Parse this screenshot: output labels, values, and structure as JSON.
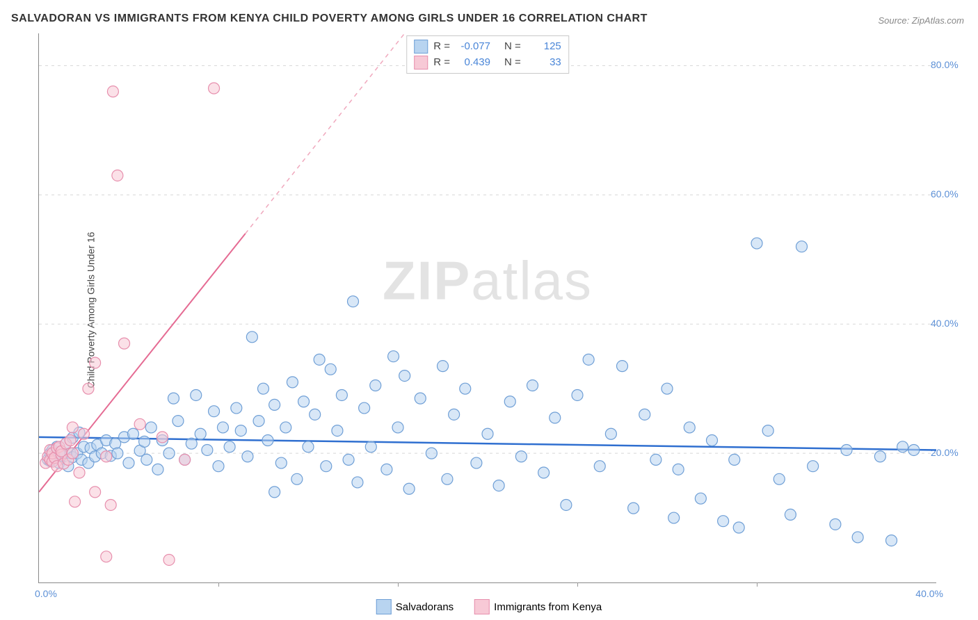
{
  "title": "SALVADORAN VS IMMIGRANTS FROM KENYA CHILD POVERTY AMONG GIRLS UNDER 16 CORRELATION CHART",
  "source_prefix": "Source: ",
  "source_name": "ZipAtlas.com",
  "y_axis_label": "Child Poverty Among Girls Under 16",
  "watermark_bold": "ZIP",
  "watermark_light": "atlas",
  "chart": {
    "type": "scatter",
    "xlim": [
      0,
      40
    ],
    "ylim": [
      0,
      85
    ],
    "x_ticks": [
      {
        "v": 0,
        "l": "0.0%"
      },
      {
        "v": 40,
        "l": "40.0%"
      }
    ],
    "x_minor_ticks": [
      8,
      16,
      24,
      32
    ],
    "y_ticks": [
      {
        "v": 20,
        "l": "20.0%"
      },
      {
        "v": 40,
        "l": "40.0%"
      },
      {
        "v": 60,
        "l": "60.0%"
      },
      {
        "v": 80,
        "l": "80.0%"
      }
    ],
    "grid_color": "#d8d8d8",
    "background": "#ffffff",
    "marker_radius": 8,
    "marker_stroke_width": 1.2,
    "series": [
      {
        "id": "salvadorans",
        "label": "Salvadorans",
        "fill": "#b8d4f0",
        "stroke": "#6f9fd6",
        "fill_opacity": 0.55,
        "trend": {
          "x1": 0,
          "y1": 22.5,
          "x2": 40,
          "y2": 20.5,
          "color": "#2f6fd0",
          "width": 2.5,
          "dash": ""
        },
        "R": "-0.077",
        "N": "125",
        "points": [
          [
            0.4,
            19.0
          ],
          [
            0.5,
            20.0
          ],
          [
            0.5,
            18.8
          ],
          [
            0.6,
            20.5
          ],
          [
            0.7,
            19.2
          ],
          [
            0.8,
            21.0
          ],
          [
            0.9,
            18.5
          ],
          [
            1.0,
            20.3
          ],
          [
            1.0,
            19.6
          ],
          [
            1.2,
            21.5
          ],
          [
            1.3,
            18.0
          ],
          [
            1.4,
            20.0
          ],
          [
            1.5,
            22.4
          ],
          [
            1.5,
            19.4
          ],
          [
            1.7,
            20.0
          ],
          [
            1.8,
            23.2
          ],
          [
            1.9,
            19.0
          ],
          [
            2.0,
            21.0
          ],
          [
            2.2,
            18.5
          ],
          [
            2.3,
            20.8
          ],
          [
            2.5,
            19.5
          ],
          [
            2.6,
            21.3
          ],
          [
            2.8,
            20.0
          ],
          [
            3.0,
            22.0
          ],
          [
            3.2,
            19.6
          ],
          [
            3.4,
            21.5
          ],
          [
            3.5,
            20.0
          ],
          [
            3.8,
            22.5
          ],
          [
            4.0,
            18.5
          ],
          [
            4.2,
            23.0
          ],
          [
            4.5,
            20.4
          ],
          [
            4.7,
            21.8
          ],
          [
            4.8,
            19.0
          ],
          [
            5.0,
            24.0
          ],
          [
            5.3,
            17.5
          ],
          [
            5.5,
            22.0
          ],
          [
            5.8,
            20.0
          ],
          [
            6.0,
            28.5
          ],
          [
            6.2,
            25.0
          ],
          [
            6.5,
            19.0
          ],
          [
            6.8,
            21.5
          ],
          [
            7.0,
            29.0
          ],
          [
            7.2,
            23.0
          ],
          [
            7.5,
            20.5
          ],
          [
            7.8,
            26.5
          ],
          [
            8.0,
            18.0
          ],
          [
            8.2,
            24.0
          ],
          [
            8.5,
            21.0
          ],
          [
            8.8,
            27.0
          ],
          [
            9.0,
            23.5
          ],
          [
            9.3,
            19.5
          ],
          [
            9.5,
            38.0
          ],
          [
            9.8,
            25.0
          ],
          [
            10.0,
            30.0
          ],
          [
            10.2,
            22.0
          ],
          [
            10.5,
            27.5
          ],
          [
            10.5,
            14.0
          ],
          [
            10.8,
            18.5
          ],
          [
            11.0,
            24.0
          ],
          [
            11.3,
            31.0
          ],
          [
            11.5,
            16.0
          ],
          [
            11.8,
            28.0
          ],
          [
            12.0,
            21.0
          ],
          [
            12.3,
            26.0
          ],
          [
            12.5,
            34.5
          ],
          [
            12.8,
            18.0
          ],
          [
            13.0,
            33.0
          ],
          [
            13.3,
            23.5
          ],
          [
            13.5,
            29.0
          ],
          [
            13.8,
            19.0
          ],
          [
            14.0,
            43.5
          ],
          [
            14.2,
            15.5
          ],
          [
            14.5,
            27.0
          ],
          [
            14.8,
            21.0
          ],
          [
            15.0,
            30.5
          ],
          [
            15.5,
            17.5
          ],
          [
            15.8,
            35.0
          ],
          [
            16.0,
            24.0
          ],
          [
            16.3,
            32.0
          ],
          [
            16.5,
            14.5
          ],
          [
            17.0,
            28.5
          ],
          [
            17.5,
            20.0
          ],
          [
            18.0,
            33.5
          ],
          [
            18.2,
            16.0
          ],
          [
            18.5,
            26.0
          ],
          [
            19.0,
            30.0
          ],
          [
            19.5,
            18.5
          ],
          [
            20.0,
            23.0
          ],
          [
            20.5,
            15.0
          ],
          [
            21.0,
            28.0
          ],
          [
            21.5,
            19.5
          ],
          [
            22.0,
            30.5
          ],
          [
            22.5,
            17.0
          ],
          [
            23.0,
            25.5
          ],
          [
            23.5,
            12.0
          ],
          [
            24.0,
            29.0
          ],
          [
            24.5,
            34.5
          ],
          [
            25.0,
            18.0
          ],
          [
            25.5,
            23.0
          ],
          [
            26.0,
            33.5
          ],
          [
            26.5,
            11.5
          ],
          [
            27.0,
            26.0
          ],
          [
            27.5,
            19.0
          ],
          [
            28.0,
            30.0
          ],
          [
            28.3,
            10.0
          ],
          [
            28.5,
            17.5
          ],
          [
            29.0,
            24.0
          ],
          [
            29.5,
            13.0
          ],
          [
            30.0,
            22.0
          ],
          [
            30.5,
            9.5
          ],
          [
            31.0,
            19.0
          ],
          [
            31.2,
            8.5
          ],
          [
            32.0,
            52.5
          ],
          [
            32.5,
            23.5
          ],
          [
            33.0,
            16.0
          ],
          [
            33.5,
            10.5
          ],
          [
            34.0,
            52.0
          ],
          [
            34.5,
            18.0
          ],
          [
            35.5,
            9.0
          ],
          [
            36.0,
            20.5
          ],
          [
            36.5,
            7.0
          ],
          [
            37.5,
            19.5
          ],
          [
            38.0,
            6.5
          ],
          [
            38.5,
            21.0
          ],
          [
            39.0,
            20.5
          ]
        ]
      },
      {
        "id": "kenyans",
        "label": "Immigrants from Kenya",
        "fill": "#f7c9d6",
        "stroke": "#e78fad",
        "fill_opacity": 0.55,
        "trend": {
          "x1": 0,
          "y1": 14.0,
          "x2": 9.2,
          "y2": 54.0,
          "color": "#e56b93",
          "width": 2,
          "dash": ""
        },
        "trend_ext": {
          "x1": 9.2,
          "y1": 54.0,
          "x2": 16.3,
          "y2": 85.0,
          "color": "#f0a8bd",
          "width": 1.5,
          "dash": "6,6"
        },
        "R": "0.439",
        "N": "33",
        "points": [
          [
            0.3,
            18.5
          ],
          [
            0.4,
            19.5
          ],
          [
            0.5,
            20.5
          ],
          [
            0.5,
            19.0
          ],
          [
            0.6,
            18.7
          ],
          [
            0.6,
            20.0
          ],
          [
            0.7,
            19.3
          ],
          [
            0.8,
            20.8
          ],
          [
            0.8,
            18.0
          ],
          [
            0.9,
            21.0
          ],
          [
            1.0,
            19.8
          ],
          [
            1.0,
            20.3
          ],
          [
            1.1,
            18.4
          ],
          [
            1.2,
            21.5
          ],
          [
            1.3,
            19.0
          ],
          [
            1.4,
            22.0
          ],
          [
            1.5,
            24.0
          ],
          [
            1.5,
            20.0
          ],
          [
            1.6,
            12.5
          ],
          [
            1.8,
            17.0
          ],
          [
            2.0,
            23.0
          ],
          [
            2.2,
            30.0
          ],
          [
            2.5,
            34.0
          ],
          [
            2.5,
            14.0
          ],
          [
            3.0,
            19.5
          ],
          [
            3.2,
            12.0
          ],
          [
            3.3,
            76.0
          ],
          [
            3.5,
            63.0
          ],
          [
            3.8,
            37.0
          ],
          [
            4.5,
            24.5
          ],
          [
            5.5,
            22.5
          ],
          [
            6.5,
            19.0
          ],
          [
            7.8,
            76.5
          ]
        ]
      }
    ],
    "extra_pink_low": [
      [
        3.0,
        4.0
      ],
      [
        5.8,
        3.5
      ]
    ]
  },
  "stats_labels": {
    "R": "R =",
    "N": "N ="
  },
  "legend_position": "bottom-center"
}
